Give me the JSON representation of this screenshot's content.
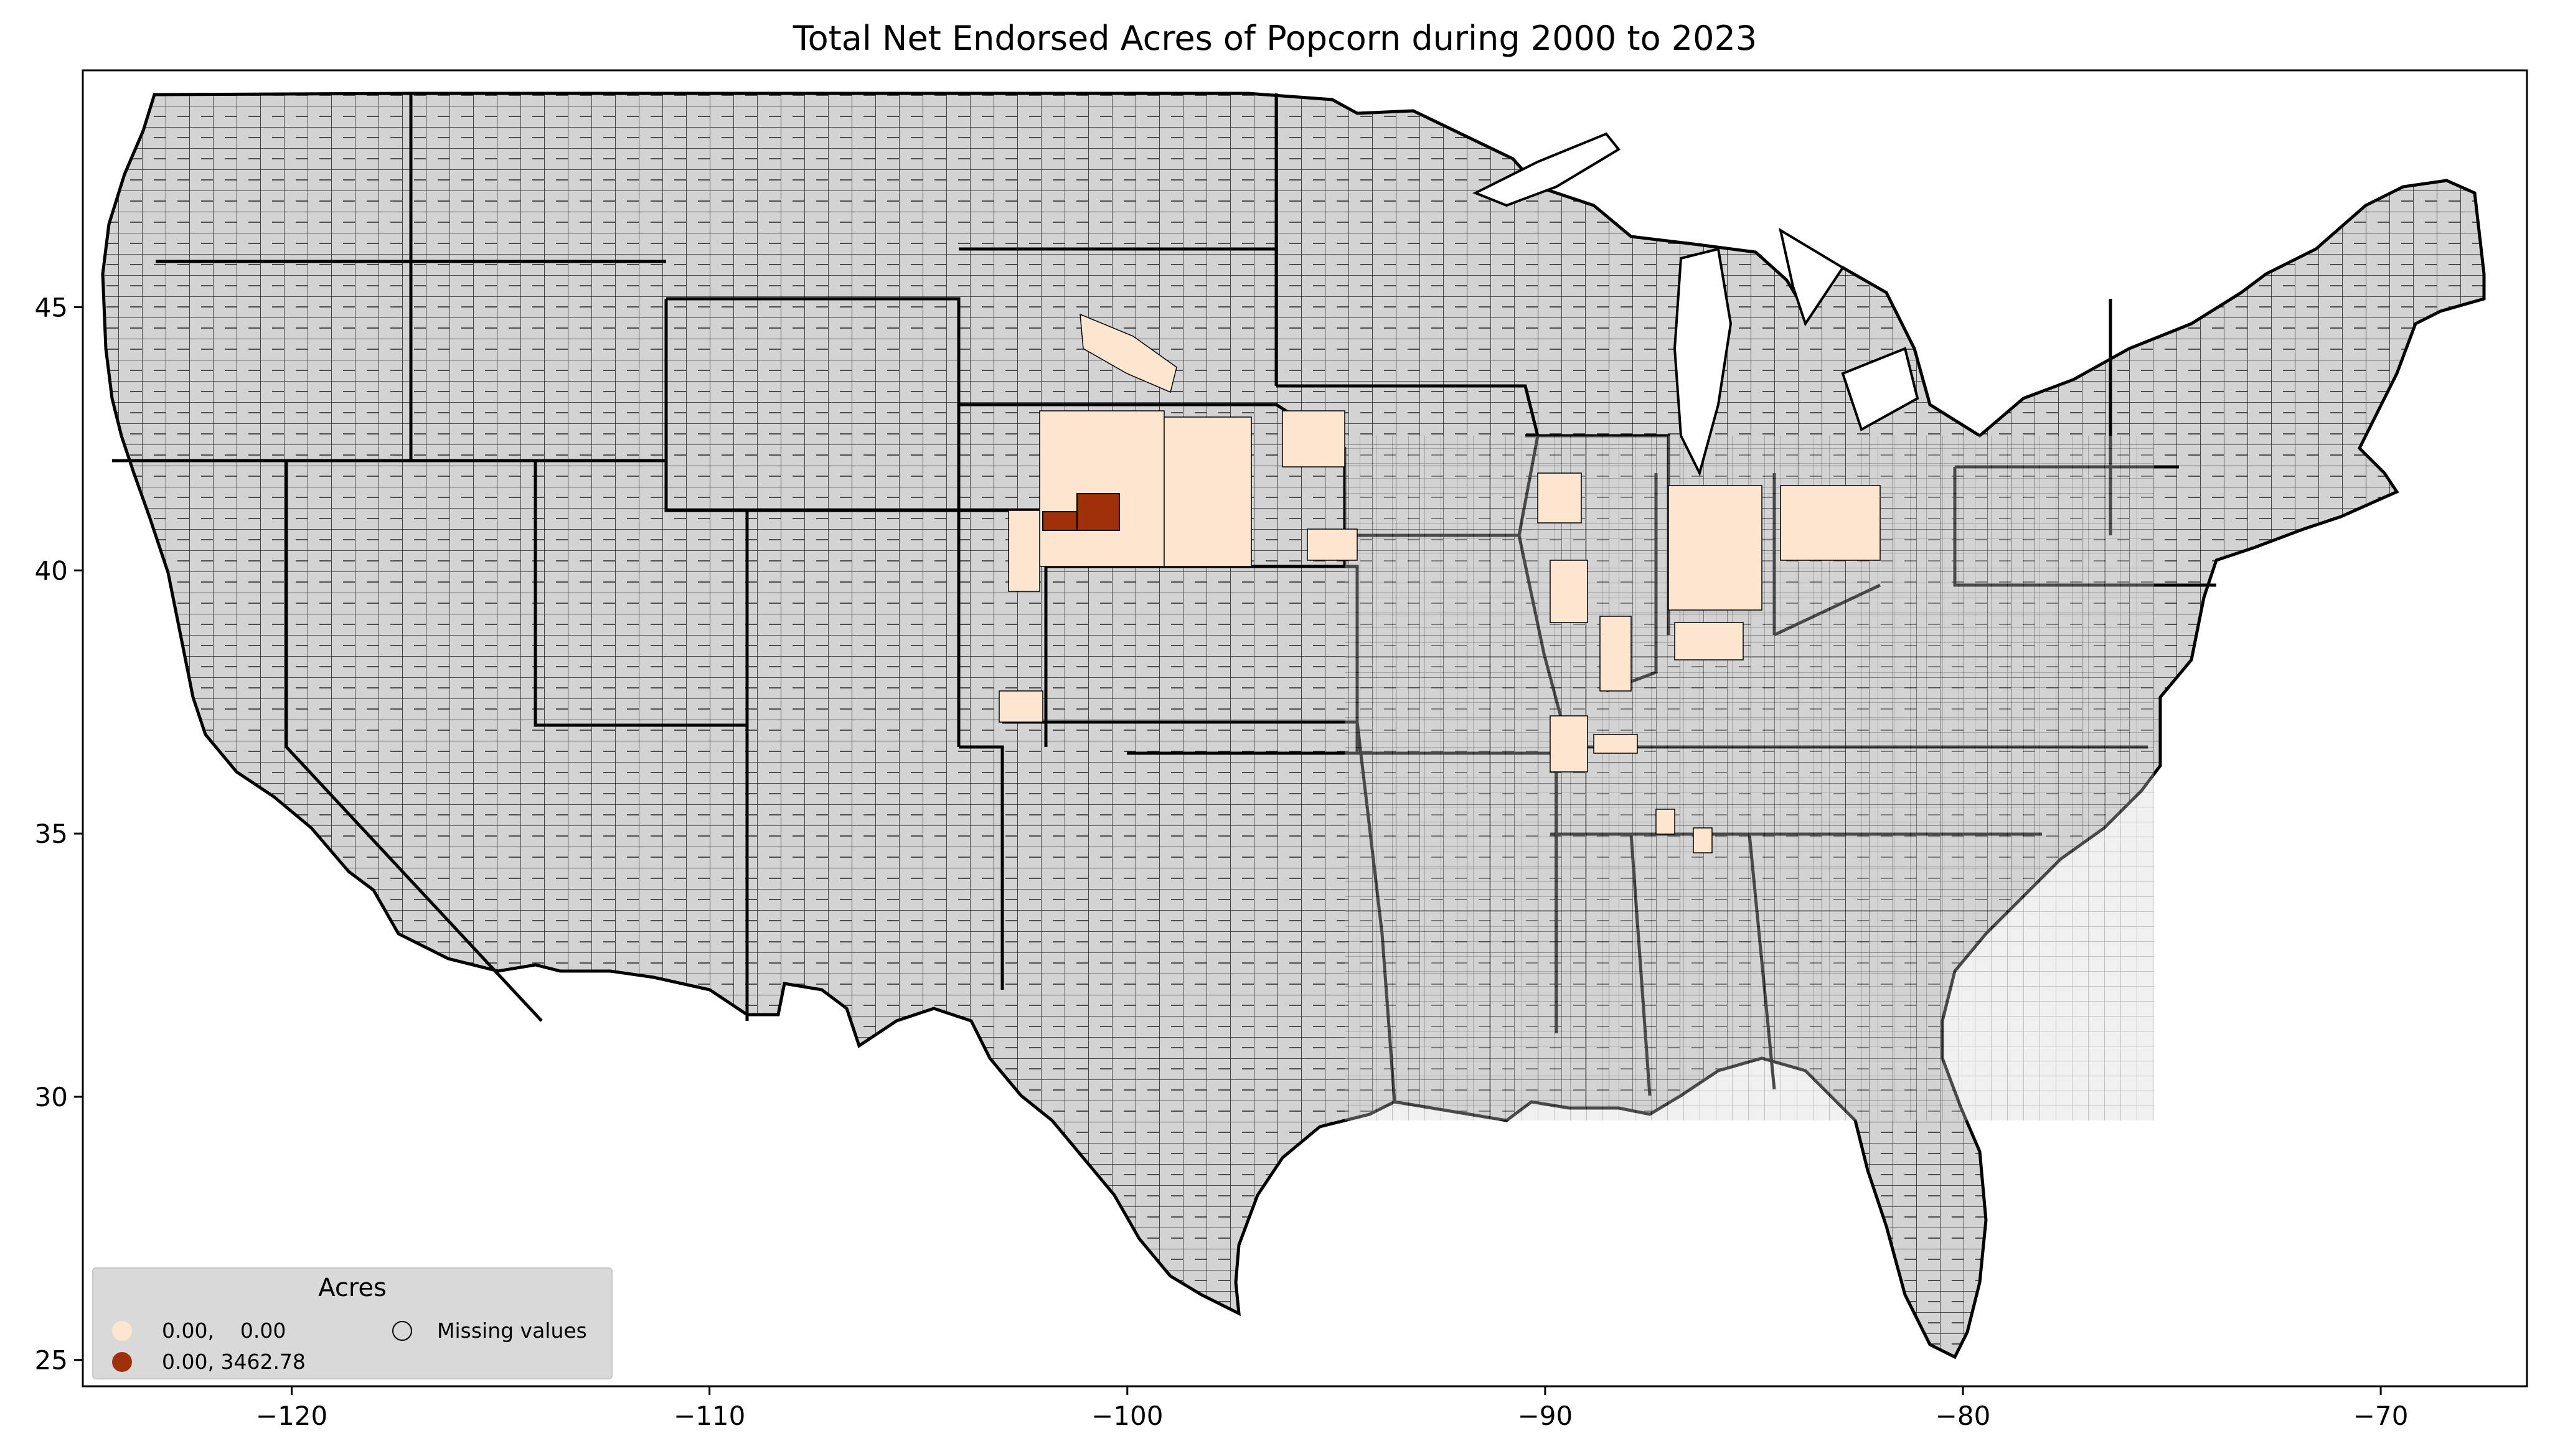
{
  "chart_data": {
    "type": "choropleth",
    "title": "Total Net Endorsed Acres of Popcorn during 2000 to 2023",
    "xlabel": "",
    "ylabel": "",
    "xlim": [
      -125,
      -66.5
    ],
    "ylim": [
      24.5,
      49.5
    ],
    "x_ticks": [
      -120,
      -110,
      -100,
      -90,
      -80,
      -70
    ],
    "y_ticks": [
      25,
      30,
      35,
      40,
      45
    ],
    "x_tick_labels": [
      "−120",
      "−110",
      "−100",
      "−90",
      "−80",
      "−70"
    ],
    "y_tick_labels": [
      "25",
      "30",
      "35",
      "40",
      "45"
    ],
    "missing_color": "#d3d3d3",
    "legend": {
      "title": "Acres",
      "placement": "lower-left",
      "entries": [
        {
          "label": "0.00,    0.00",
          "color": "#fde6d0"
        },
        {
          "label": "0.00, 3462.78",
          "color": "#a0300a"
        },
        {
          "label": "Missing values",
          "color": "none"
        }
      ]
    },
    "highlighted_counties": [
      {
        "name": "",
        "bin": "0.00, 3462.78",
        "lon": -101.2,
        "lat": 41.0
      },
      {
        "name": "",
        "bin": "0.00, 3462.78",
        "lon": -100.4,
        "lat": 41.1
      },
      {
        "name": "",
        "bin": "0.00,    0.00",
        "lon": -97.5,
        "lat": 42.0
      },
      {
        "name": "",
        "bin": "0.00,    0.00",
        "lon": -86.5,
        "lat": 40.5
      },
      {
        "name": "",
        "bin": "0.00,    0.00",
        "lon": -84.0,
        "lat": 40.8
      }
    ]
  }
}
